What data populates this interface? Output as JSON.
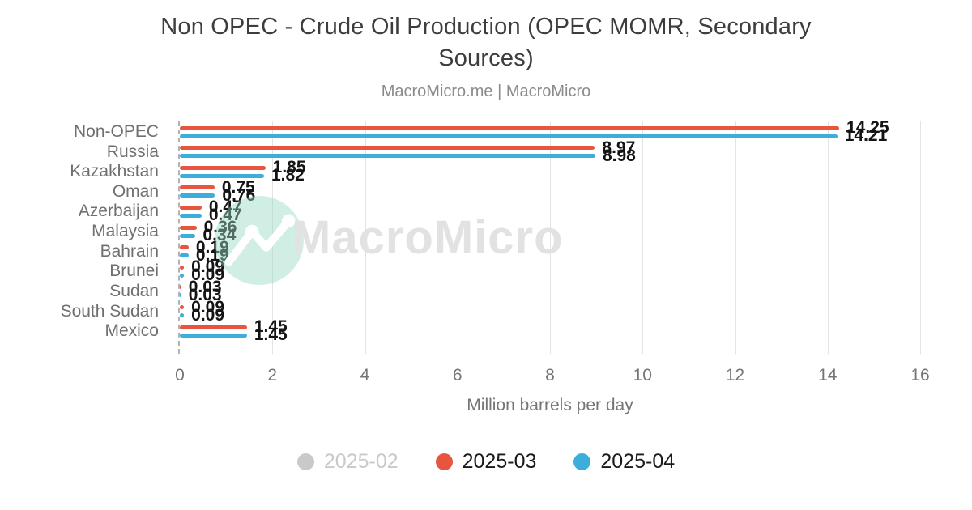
{
  "chart_data": {
    "type": "bar",
    "orientation": "horizontal",
    "title": "Non OPEC - Crude Oil Production (OPEC MOMR, Secondary Sources)",
    "subtitle": "MacroMicro.me | MacroMicro",
    "categories": [
      "Non-OPEC",
      "Russia",
      "Kazakhstan",
      "Oman",
      "Azerbaijan",
      "Malaysia",
      "Bahrain",
      "Brunei",
      "Sudan",
      "South Sudan",
      "Mexico"
    ],
    "series": [
      {
        "name": "2025-02",
        "color": "#c9c9c9",
        "enabled": false,
        "values": null
      },
      {
        "name": "2025-03",
        "color": "#e8553f",
        "enabled": true,
        "values": [
          14.25,
          8.97,
          1.85,
          0.75,
          0.47,
          0.36,
          0.19,
          0.09,
          0.03,
          0.09,
          1.45
        ]
      },
      {
        "name": "2025-04",
        "color": "#3baedb",
        "enabled": true,
        "values": [
          14.21,
          8.98,
          1.82,
          0.76,
          0.47,
          0.34,
          0.19,
          0.09,
          0.03,
          0.09,
          1.45
        ]
      }
    ],
    "xlabel": "Million barrels per day",
    "xlim": [
      0,
      16
    ],
    "xticks": [
      0,
      2,
      4,
      6,
      8,
      10,
      12,
      14,
      16
    ],
    "grid": true,
    "legend_position": "bottom",
    "value_label_decimals": 2
  },
  "watermark": {
    "text": "MacroMicro"
  },
  "colors": {
    "title": "#3d3d3d",
    "subtitle": "#8b8b8b",
    "axis_text": "#757575",
    "category_text": "#6f6f6f",
    "value_label": "#141414",
    "gridline": "#e3e3e3",
    "legend_disabled": "#c9c9c9",
    "legend_enabled_text": "#1a1a1a",
    "watermark_circle": "#96d9c4",
    "watermark_text": "#e2e2e2"
  }
}
